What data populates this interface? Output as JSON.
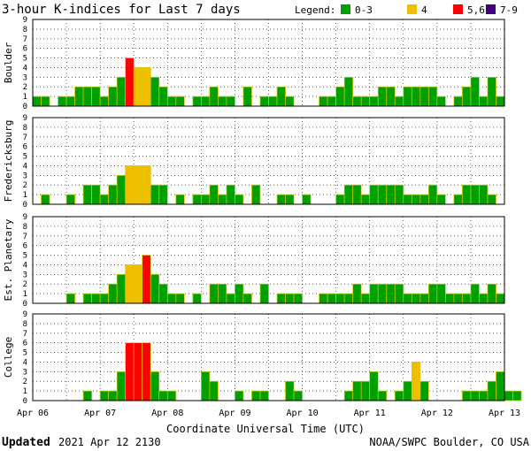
{
  "title": "3-hour K-indices for Last 7 days",
  "legend": {
    "label": "Legend:",
    "items": [
      {
        "label": "0-3",
        "color": "#00a000"
      },
      {
        "label": "4",
        "color": "#f0c000"
      },
      {
        "label": "5,6",
        "color": "#ff0000"
      },
      {
        "label": "7-9",
        "color": "#400080"
      }
    ]
  },
  "footer": {
    "updated_label": "Updated",
    "updated_value": "2021 Apr 12 2130",
    "credit": "NOAA/SWPC Boulder, CO USA"
  },
  "chart_data": {
    "type": "bar",
    "xlabel": "Coordinate Universal Time (UTC)",
    "x_ticks": [
      "Apr 06",
      "Apr 07",
      "Apr 08",
      "Apr 09",
      "Apr 10",
      "Apr 11",
      "Apr 12",
      "Apr 13"
    ],
    "y_ticks": [
      "0",
      "1",
      "2",
      "3",
      "4",
      "5",
      "6",
      "7",
      "8",
      "9"
    ],
    "ylim": [
      0,
      9
    ],
    "bins_per_day": 8,
    "grid": true,
    "panels": [
      {
        "name": "Boulder",
        "values": [
          1,
          1,
          0,
          1,
          1,
          2,
          2,
          2,
          1,
          2,
          3,
          5,
          4,
          4,
          3,
          2,
          1,
          1,
          0,
          1,
          1,
          2,
          1,
          1,
          0,
          2,
          0,
          1,
          1,
          2,
          1,
          0,
          0,
          0,
          1,
          1,
          2,
          3,
          1,
          1,
          1,
          2,
          2,
          1,
          2,
          2,
          2,
          2,
          1,
          0,
          1,
          2,
          3,
          1,
          3,
          1,
          0
        ]
      },
      {
        "name": "Fredericksburg",
        "values": [
          0,
          1,
          0,
          0,
          1,
          0,
          2,
          2,
          1,
          2,
          3,
          4,
          4,
          4,
          2,
          2,
          0,
          1,
          0,
          1,
          1,
          2,
          1,
          2,
          1,
          0,
          2,
          0,
          0,
          1,
          1,
          0,
          1,
          0,
          0,
          0,
          1,
          2,
          2,
          1,
          2,
          2,
          2,
          2,
          1,
          1,
          1,
          2,
          1,
          0,
          1,
          2,
          2,
          2,
          1,
          0
        ]
      },
      {
        "name": "Est. Planetary",
        "values": [
          0,
          0,
          0,
          0,
          1,
          0,
          1,
          1,
          1,
          2,
          3,
          4,
          4,
          5,
          3,
          2,
          1,
          1,
          0,
          1,
          0,
          2,
          2,
          1,
          2,
          1,
          0,
          2,
          0,
          1,
          1,
          1,
          0,
          0,
          1,
          1,
          1,
          1,
          2,
          1,
          2,
          2,
          2,
          2,
          1,
          1,
          1,
          2,
          2,
          1,
          1,
          1,
          2,
          1,
          2,
          1,
          0
        ]
      },
      {
        "name": "College",
        "values": [
          0,
          0,
          0,
          0,
          0,
          0,
          1,
          0,
          1,
          1,
          3,
          6,
          6,
          6,
          3,
          1,
          1,
          0,
          0,
          0,
          3,
          2,
          0,
          0,
          1,
          0,
          1,
          1,
          0,
          0,
          2,
          1,
          0,
          0,
          0,
          0,
          0,
          1,
          2,
          2,
          3,
          1,
          0,
          1,
          2,
          4,
          2,
          0,
          0,
          0,
          0,
          1,
          1,
          1,
          2,
          3,
          1,
          1,
          0
        ]
      }
    ]
  }
}
